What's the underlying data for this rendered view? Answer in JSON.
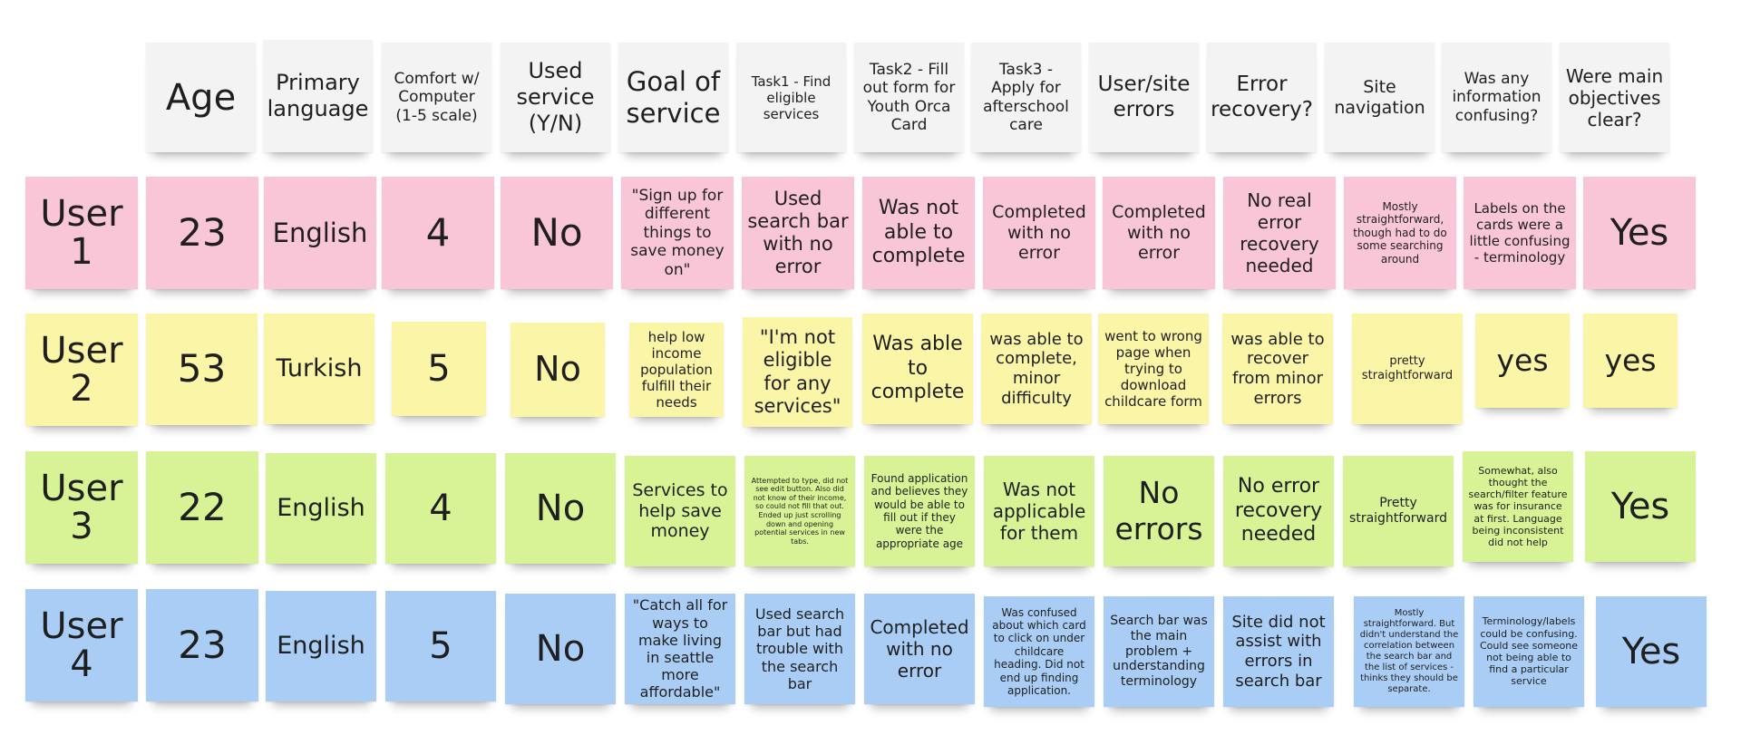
{
  "colors": {
    "header": "#f3f3f4",
    "user1": "#f9c6d8",
    "user2": "#fbf5a7",
    "user3": "#d7f395",
    "user4": "#a9cdf5"
  },
  "headers": {
    "age": "Age",
    "language": "Primary language",
    "comfort": "Comfort w/ Computer (1-5 scale)",
    "used": "Used service (Y/N)",
    "goal": "Goal of service",
    "task1": "Task1 - Find eligible services",
    "task2": "Task2 - Fill out form for Youth Orca Card",
    "task3": "Task3 - Apply for afterschool care",
    "errors": "User/site errors",
    "recovery": "Error recovery?",
    "navigation": "Site navigation",
    "confusing": "Was any information confusing?",
    "objectives": "Were main objectives clear?"
  },
  "users": [
    {
      "label": "User\n1",
      "age": "23",
      "language": "English",
      "comfort": "4",
      "used": "No",
      "goal": "\"Sign up for different things to save money on\"",
      "task1": "Used search bar with no error",
      "task2": "Was not able to complete",
      "task3": "Completed with no error",
      "errors": "Completed with no error",
      "recovery": "No real error recovery needed",
      "navigation": "Mostly straightforward, though had to do some searching around",
      "confusing": "Labels on the cards were a little confusing - terminology",
      "objectives": "Yes"
    },
    {
      "label": "User\n2",
      "age": "53",
      "language": "Turkish",
      "comfort": "5",
      "used": "No",
      "goal": "help low income population fulfill their needs",
      "task1": "\"I'm not eligible for any services\"",
      "task2": "Was able to complete",
      "task3": "was able to complete, minor difficulty",
      "errors": "went to wrong page when trying to download childcare form",
      "recovery": "was able to recover from minor errors",
      "navigation": "pretty straightforward",
      "confusing": "yes",
      "objectives": "yes"
    },
    {
      "label": "User\n3",
      "age": "22",
      "language": "English",
      "comfort": "4",
      "used": "No",
      "goal": "Services to help save money",
      "task1": "Attempted to type, did not see edit button. Also did not know of their income, so could not fill that out. Ended up just scrolling down and opening potential services in new tabs.",
      "task2": "Found application and believes they would be able to fill out if they were the appropriate age",
      "task3": "Was not applicable for them",
      "errors": "No errors",
      "recovery": "No error recovery needed",
      "navigation": "Pretty straightforward",
      "confusing": "Somewhat, also thought the search/filter feature was for insurance at first. Language being inconsistent did not help",
      "objectives": "Yes"
    },
    {
      "label": "User\n4",
      "age": "23",
      "language": "English",
      "comfort": "5",
      "used": "No",
      "goal": "\"Catch all for ways to make living in seattle more affordable\"",
      "task1": "Used search bar but had trouble with the search bar",
      "task2": "Completed with no error",
      "task3": "Was confused about which card to click on under childcare heading. Did not end up finding application.",
      "errors": "Search bar was the main problem + understanding terminology",
      "recovery": "Site did not assist with errors in search bar",
      "navigation": "Mostly straightforward. But didn't understand the correlation between the search bar and the list of services - thinks they should be separate.",
      "confusing": "Terminology/labels could be confusing. Could see someone not being able to find a particular service",
      "objectives": "Yes"
    }
  ]
}
